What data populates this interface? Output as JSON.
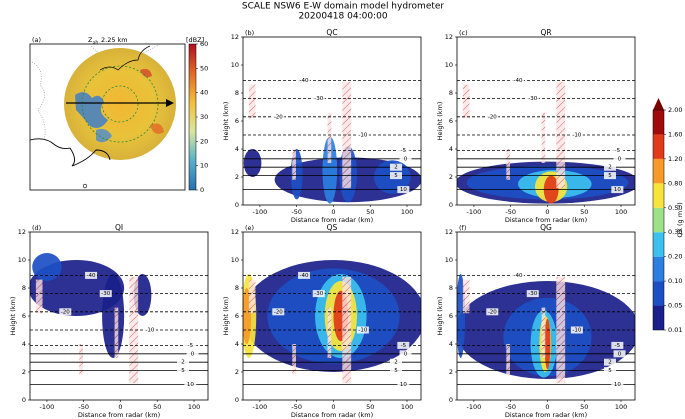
{
  "title": "SCALE NSW6 E-W domain model hydrometer",
  "subtitle": "20200418 04:00:00",
  "map": {
    "letter": "(a)",
    "label_main": "Z",
    "label_sub": "sh",
    "label_rest": "2.25 km",
    "unit": "[dBZ]",
    "clim": [
      0,
      60
    ],
    "cticks": [
      0,
      10,
      20,
      30,
      40,
      50,
      60
    ]
  },
  "contours": [
    {
      "level": -40,
      "height": 8.9
    },
    {
      "level": -30,
      "height": 7.6
    },
    {
      "level": -20,
      "height": 6.3
    },
    {
      "level": -10,
      "height": 5.0
    },
    {
      "level": -5,
      "height": 3.9
    },
    {
      "level": 0,
      "height": 3.3
    },
    {
      "level": 2,
      "height": 2.7
    },
    {
      "level": 5,
      "height": 2.1
    },
    {
      "level": 10,
      "height": 1.1
    }
  ],
  "colorbar": {
    "label": "QX (g m⁻³)",
    "colors": [
      "#1a1f8a",
      "#1c4fc4",
      "#2a7fe0",
      "#3cc0ee",
      "#9fe08a",
      "#f7e43a",
      "#f79a2a",
      "#e03a1a",
      "#a00b0b"
    ],
    "extend_color": "#7a0000",
    "ticks": [
      0.01,
      0.05,
      {
        "value": 0.1,
        "label": "0.10"
      },
      {
        "value": 0.2,
        "label": "0.20"
      },
      {
        "value": 0.3,
        "label": "0.30"
      },
      {
        "value": 0.5,
        "label": "0.50"
      },
      {
        "value": 0.8,
        "label": "0.80"
      },
      {
        "value": 1.2,
        "label": "1.20"
      },
      {
        "value": 1.6,
        "label": "1.60"
      },
      {
        "value": 2,
        "label": "2.00"
      }
    ]
  },
  "chart_data": [
    {
      "type": "contour",
      "letter": "(b)",
      "title": "QC",
      "xlabel": "Distance from radar (km)",
      "ylabel": "Height (km)",
      "xlim": [
        -123,
        119
      ],
      "ylim": [
        0,
        12
      ],
      "xticks": [
        -100,
        -50,
        0,
        50,
        100
      ],
      "yticks": [
        0,
        2,
        4,
        6,
        8,
        10,
        12
      ]
    },
    {
      "type": "contour",
      "letter": "(c)",
      "title": "QR",
      "xlabel": "Distance from radar (km)",
      "ylabel": "Height (km)",
      "xlim": [
        -123,
        119
      ],
      "ylim": [
        0,
        12
      ],
      "xticks": [
        -100,
        -50,
        0,
        50,
        100
      ],
      "yticks": [
        0,
        2,
        4,
        6,
        8,
        10,
        12
      ]
    },
    {
      "type": "contour",
      "letter": "(d)",
      "title": "QI",
      "xlabel": "Distance from radar (km)",
      "ylabel": "Height (km)",
      "xlim": [
        -123,
        119
      ],
      "ylim": [
        0,
        12
      ],
      "xticks": [
        -100,
        -50,
        0,
        50,
        100
      ],
      "yticks": [
        0,
        2,
        4,
        6,
        8,
        10,
        12
      ]
    },
    {
      "type": "contour",
      "letter": "(e)",
      "title": "QS",
      "xlabel": "Distance from radar (km)",
      "ylabel": "Height (km)",
      "xlim": [
        -123,
        119
      ],
      "ylim": [
        0,
        12
      ],
      "xticks": [
        -100,
        -50,
        0,
        50,
        100
      ],
      "yticks": [
        0,
        2,
        4,
        6,
        8,
        10,
        12
      ]
    },
    {
      "type": "contour",
      "letter": "(f)",
      "title": "QG",
      "xlabel": "Distance from radar (km)",
      "ylabel": "Height (km)",
      "xlim": [
        -123,
        119
      ],
      "ylim": [
        0,
        12
      ],
      "xticks": [
        -100,
        -50,
        0,
        50,
        100
      ],
      "yticks": [
        0,
        2,
        4,
        6,
        8,
        10,
        12
      ]
    }
  ]
}
